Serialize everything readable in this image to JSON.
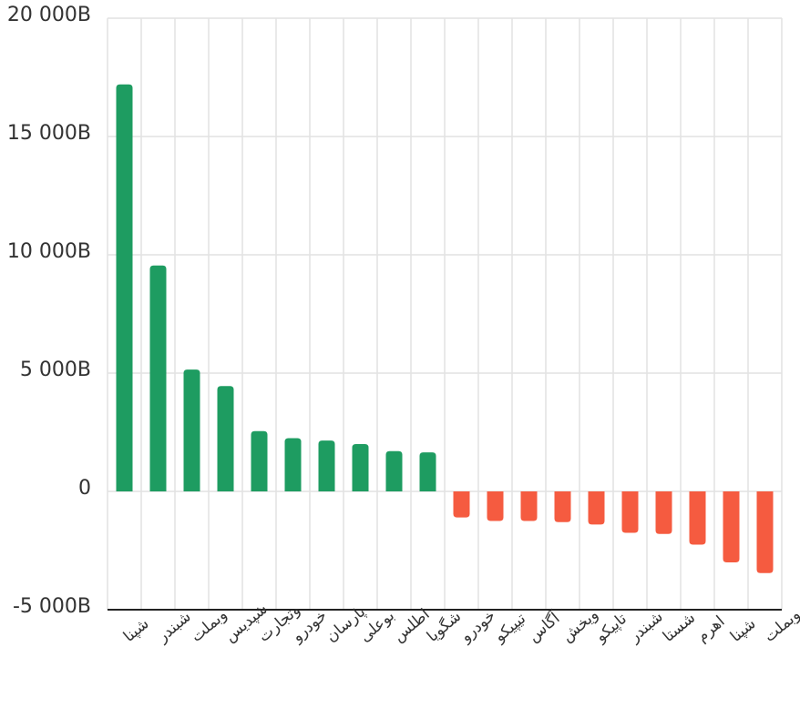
{
  "colors": {
    "positive": "#1e9c61",
    "negative": "#f55b40",
    "grid": "#e2e2e2",
    "axis": "#222222",
    "text": "#333333"
  },
  "chart_data": {
    "type": "bar",
    "title": "",
    "xlabel": "",
    "ylabel": "",
    "ylim": [
      -5000,
      20000
    ],
    "yticks": [
      20000,
      15000,
      10000,
      5000,
      0,
      -5000
    ],
    "ytick_labels": [
      "20 000B",
      "15 000B",
      "10 000B",
      "5 000B",
      "0",
      "-5 000B"
    ],
    "grid": true,
    "categories": [
      "شپنا",
      "شبندر",
      "وبملت",
      "شپدیس",
      "وتجارت",
      "خودرو",
      "پارسان",
      "بوعلی",
      "اطلس",
      "شگویا",
      "خودرو",
      "تیپیکو",
      "آگاس",
      "ویخش",
      "تاپیکو",
      "شبندر",
      "شستا",
      "اهرم",
      "شپنا",
      "وبملت"
    ],
    "values": [
      17200,
      9550,
      5150,
      4450,
      2550,
      2250,
      2150,
      2000,
      1700,
      1650,
      -1100,
      -1250,
      -1250,
      -1300,
      -1400,
      -1750,
      -1800,
      -2250,
      -3000,
      -3450
    ]
  }
}
